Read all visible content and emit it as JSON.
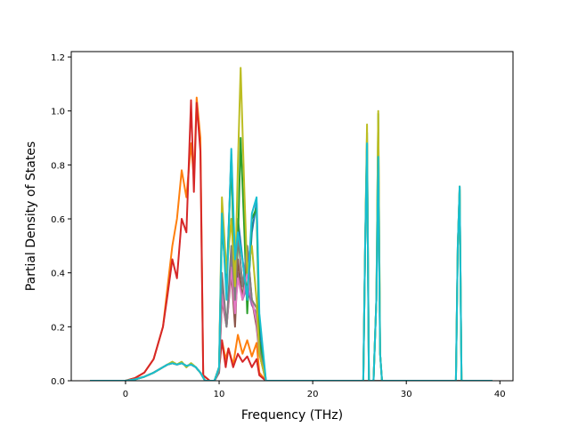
{
  "chart_data": {
    "type": "line",
    "title": "",
    "xlabel": "Frequency (THz)",
    "ylabel": "Partial Density of States",
    "xlim": [
      -5.8,
      41.4
    ],
    "ylim": [
      0.0,
      1.22
    ],
    "xticks": [
      0,
      10,
      20,
      30,
      40
    ],
    "yticks": [
      0.0,
      0.2,
      0.4,
      0.6,
      0.8,
      1.0,
      1.2
    ],
    "xtick_labels": [
      "0",
      "10",
      "20",
      "30",
      "40"
    ],
    "ytick_labels": [
      "0.0",
      "0.2",
      "0.4",
      "0.6",
      "0.8",
      "1.0",
      "1.2"
    ],
    "grid": false,
    "legend": "none",
    "series": [
      {
        "color": "#1f77b4",
        "x": [
          -3.8,
          0,
          1,
          2,
          3,
          4,
          4.5,
          5,
          5.5,
          6,
          6.5,
          7,
          7.5,
          8,
          8.5,
          9,
          9.5,
          10,
          10.3,
          10.8,
          11.3,
          11.7,
          12,
          12.5,
          13,
          13.5,
          14,
          14.3,
          15,
          25.4,
          25.6,
          25.8,
          26,
          26.5,
          26.8,
          27.0,
          27.2,
          27.4,
          35.3,
          35.5,
          35.7,
          35.9,
          39.2
        ],
        "y": [
          0,
          0,
          0.005,
          0.015,
          0.03,
          0.05,
          0.06,
          0.065,
          0.06,
          0.065,
          0.055,
          0.06,
          0.05,
          0.03,
          0,
          0,
          0,
          0.05,
          0.6,
          0.35,
          0.84,
          0.4,
          0.6,
          0.45,
          0.3,
          0.55,
          0.66,
          0.2,
          0,
          0,
          0.5,
          0.88,
          0,
          0,
          0.3,
          0.82,
          0.1,
          0,
          0,
          0.5,
          0.72,
          0,
          0
        ]
      },
      {
        "color": "#ff7f0e",
        "x": [
          -3.8,
          0,
          1,
          2,
          3,
          4,
          4.5,
          5,
          5.5,
          6,
          6.5,
          7,
          7.3,
          7.6,
          8,
          8.3,
          9,
          9.5,
          10,
          10.3,
          10.7,
          11,
          11.5,
          12,
          12.5,
          13,
          13.5,
          14,
          14.3,
          15,
          39.2
        ],
        "y": [
          0,
          0,
          0.01,
          0.03,
          0.08,
          0.2,
          0.35,
          0.5,
          0.6,
          0.78,
          0.68,
          0.88,
          0.75,
          1.05,
          0.9,
          0.02,
          0,
          0,
          0.05,
          0.15,
          0.08,
          0.12,
          0.06,
          0.17,
          0.1,
          0.15,
          0.09,
          0.14,
          0.03,
          0,
          0
        ]
      },
      {
        "color": "#2ca02c",
        "x": [
          -3.8,
          0,
          1,
          2,
          3,
          4,
          4.5,
          5,
          5.5,
          6,
          6.5,
          7,
          7.5,
          8,
          8.5,
          9,
          9.5,
          10,
          10.3,
          10.8,
          11.3,
          11.7,
          12,
          12.3,
          12.7,
          13,
          13.5,
          14,
          14.3,
          15,
          25.4,
          25.6,
          25.8,
          26,
          26.5,
          26.8,
          27.0,
          27.2,
          27.4,
          35.3,
          35.5,
          35.7,
          35.9,
          39.2
        ],
        "y": [
          0,
          0,
          0.005,
          0.015,
          0.03,
          0.05,
          0.06,
          0.07,
          0.06,
          0.07,
          0.05,
          0.065,
          0.05,
          0.03,
          0,
          0,
          0,
          0.05,
          0.58,
          0.35,
          0.82,
          0.3,
          0.5,
          0.9,
          0.55,
          0.25,
          0.6,
          0.64,
          0.15,
          0,
          0,
          0.5,
          0.92,
          0,
          0,
          0.3,
          0.99,
          0.1,
          0,
          0,
          0.5,
          0.71,
          0,
          0
        ]
      },
      {
        "color": "#d62728",
        "x": [
          -3.8,
          0,
          1,
          2,
          3,
          4,
          4.5,
          5,
          5.5,
          6,
          6.5,
          7,
          7.3,
          7.6,
          8,
          8.3,
          9,
          9.5,
          10,
          10.3,
          10.7,
          11,
          11.5,
          12,
          12.5,
          13,
          13.5,
          14,
          14.3,
          15,
          39.2
        ],
        "y": [
          0,
          0,
          0.01,
          0.03,
          0.08,
          0.2,
          0.32,
          0.45,
          0.38,
          0.6,
          0.55,
          1.04,
          0.7,
          1.03,
          0.85,
          0.02,
          0,
          0,
          0.04,
          0.15,
          0.05,
          0.12,
          0.05,
          0.1,
          0.07,
          0.09,
          0.05,
          0.08,
          0.02,
          0,
          0
        ]
      },
      {
        "color": "#9467bd",
        "x": [
          -3.8,
          0,
          1,
          2,
          3,
          4,
          4.5,
          5,
          5.5,
          6,
          6.5,
          7,
          7.5,
          8,
          8.5,
          9,
          9.5,
          10,
          10.3,
          10.8,
          11.3,
          11.7,
          12,
          12.5,
          13,
          13.5,
          14,
          14.3,
          15,
          39.2
        ],
        "y": [
          0,
          0,
          0.005,
          0.015,
          0.03,
          0.05,
          0.06,
          0.065,
          0.06,
          0.065,
          0.055,
          0.06,
          0.05,
          0.03,
          0,
          0,
          0,
          0.03,
          0.35,
          0.2,
          0.45,
          0.25,
          0.4,
          0.3,
          0.35,
          0.28,
          0.25,
          0.1,
          0,
          0
        ]
      },
      {
        "color": "#8c564b",
        "x": [
          -3.8,
          0,
          1,
          2,
          3,
          4,
          4.5,
          5,
          5.5,
          6,
          6.5,
          7,
          7.5,
          8,
          8.5,
          9,
          9.5,
          10,
          10.3,
          10.8,
          11.3,
          11.7,
          12,
          12.5,
          13,
          13.5,
          14,
          14.3,
          15,
          39.2
        ],
        "y": [
          0,
          0,
          0.005,
          0.015,
          0.03,
          0.05,
          0.06,
          0.065,
          0.06,
          0.065,
          0.055,
          0.06,
          0.05,
          0.03,
          0,
          0,
          0,
          0.03,
          0.3,
          0.2,
          0.4,
          0.2,
          0.45,
          0.3,
          0.5,
          0.3,
          0.2,
          0.1,
          0,
          0
        ]
      },
      {
        "color": "#e377c2",
        "x": [
          -3.8,
          0,
          1,
          2,
          3,
          4,
          4.5,
          5,
          5.5,
          6,
          6.5,
          7,
          7.5,
          8,
          8.5,
          9,
          9.5,
          10,
          10.3,
          10.8,
          11.3,
          11.7,
          12,
          12.5,
          13,
          13.5,
          14,
          14.3,
          15,
          39.2
        ],
        "y": [
          0,
          0,
          0.005,
          0.015,
          0.03,
          0.05,
          0.06,
          0.065,
          0.06,
          0.065,
          0.055,
          0.06,
          0.05,
          0.03,
          0,
          0,
          0,
          0.03,
          0.32,
          0.2,
          0.42,
          0.25,
          0.38,
          0.3,
          0.4,
          0.3,
          0.22,
          0.1,
          0,
          0
        ]
      },
      {
        "color": "#7f7f7f",
        "x": [
          -3.8,
          0,
          1,
          2,
          3,
          4,
          4.5,
          5,
          5.5,
          6,
          6.5,
          7,
          7.5,
          8,
          8.5,
          9,
          9.5,
          10,
          10.3,
          10.8,
          11.3,
          11.7,
          12,
          12.5,
          13,
          13.5,
          14,
          14.3,
          15,
          39.2
        ],
        "y": [
          0,
          0,
          0.005,
          0.015,
          0.03,
          0.05,
          0.06,
          0.065,
          0.06,
          0.065,
          0.055,
          0.06,
          0.05,
          0.03,
          0,
          0,
          0,
          0.03,
          0.4,
          0.2,
          0.5,
          0.3,
          0.55,
          0.35,
          0.5,
          0.3,
          0.27,
          0.12,
          0,
          0
        ]
      },
      {
        "color": "#bcbd22",
        "x": [
          -3.8,
          0,
          1,
          2,
          3,
          4,
          4.5,
          5,
          5.5,
          6,
          6.5,
          7,
          7.5,
          8,
          8.5,
          9,
          9.5,
          10,
          10.3,
          10.8,
          11.3,
          11.7,
          12,
          12.3,
          12.7,
          13,
          13.5,
          14,
          14.3,
          15,
          25.4,
          25.6,
          25.8,
          26,
          26.5,
          26.8,
          27.0,
          27.2,
          27.4,
          35.3,
          35.5,
          35.7,
          35.9,
          39.2
        ],
        "y": [
          0,
          0,
          0.005,
          0.015,
          0.03,
          0.05,
          0.06,
          0.07,
          0.06,
          0.07,
          0.05,
          0.065,
          0.05,
          0.03,
          0,
          0,
          0,
          0.05,
          0.68,
          0.4,
          0.6,
          0.35,
          0.8,
          1.16,
          0.7,
          0.4,
          0.5,
          0.3,
          0.1,
          0,
          0,
          0.5,
          0.95,
          0,
          0,
          0.3,
          1.0,
          0.1,
          0,
          0,
          0.5,
          0.72,
          0,
          0
        ]
      },
      {
        "color": "#17becf",
        "x": [
          -3.8,
          0,
          1,
          2,
          3,
          4,
          4.5,
          5,
          5.5,
          6,
          6.5,
          7,
          7.5,
          8,
          8.5,
          9,
          9.5,
          10,
          10.3,
          10.8,
          11.3,
          11.7,
          12,
          12.5,
          13,
          13.5,
          14,
          14.3,
          15,
          25.4,
          25.6,
          25.8,
          26,
          26.5,
          26.8,
          27.0,
          27.2,
          27.4,
          35.3,
          35.5,
          35.7,
          35.9,
          39.2
        ],
        "y": [
          0,
          0,
          0.005,
          0.015,
          0.03,
          0.05,
          0.06,
          0.065,
          0.06,
          0.065,
          0.055,
          0.06,
          0.05,
          0.03,
          0,
          0,
          0,
          0.05,
          0.62,
          0.3,
          0.86,
          0.45,
          0.55,
          0.45,
          0.3,
          0.62,
          0.68,
          0.25,
          0,
          0,
          0.5,
          0.88,
          0,
          0,
          0.3,
          0.83,
          0.1,
          0,
          0,
          0.5,
          0.72,
          0,
          0
        ]
      }
    ]
  }
}
